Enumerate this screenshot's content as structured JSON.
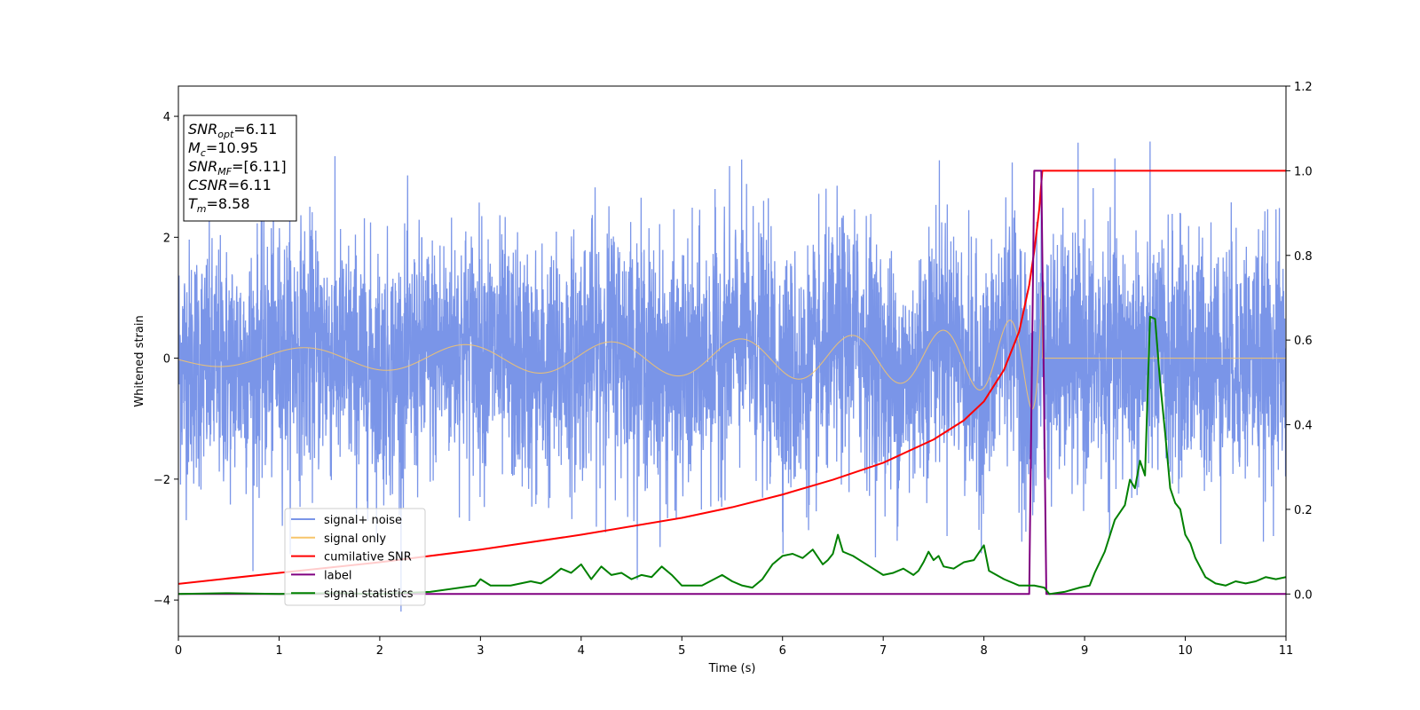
{
  "chart_data": {
    "type": "line",
    "xlabel": "Time (s)",
    "ylabel": "Whitened strain",
    "xlim": [
      0,
      11
    ],
    "ylim": [
      -4.6,
      4.5
    ],
    "y2lim": [
      -0.1,
      1.2
    ],
    "xticks": [
      "0",
      "1",
      "2",
      "3",
      "4",
      "5",
      "6",
      "7",
      "8",
      "9",
      "10",
      "11"
    ],
    "yticks": [
      "4",
      "2",
      "0",
      "−2",
      "−4"
    ],
    "y2ticks": [
      "1.2",
      "1.0",
      "0.8",
      "0.6",
      "0.4",
      "0.2",
      "0.0"
    ],
    "grid": false,
    "legend_position": "lower-left",
    "annotation": [
      {
        "base": "SNR",
        "sub": "opt",
        "value": "=6.11"
      },
      {
        "base": "M",
        "sub": "c",
        "value": "=10.95"
      },
      {
        "base": "SNR",
        "sub": "MF",
        "value": "=[6.11]"
      },
      {
        "base": "CSNR",
        "sub": "",
        "value": "=6.11"
      },
      {
        "base": "T",
        "sub": "m",
        "value": "=8.58"
      }
    ],
    "series": [
      {
        "name": "signal+ noise",
        "color": "#7a95e8",
        "axis": "left",
        "kind": "noise",
        "noise_sigma": 1.0,
        "x_range": [
          0,
          11
        ]
      },
      {
        "name": "signal only",
        "color": "#f7c56a",
        "axis": "left",
        "kind": "chirp",
        "coalescence_time": 8.58,
        "peak_amplitude": 1.25,
        "x_range": [
          0,
          11
        ]
      },
      {
        "name": "cumilative SNR",
        "color": "#ff0000",
        "axis": "right",
        "points": [
          [
            0,
            0.024
          ],
          [
            1,
            0.05
          ],
          [
            2,
            0.075
          ],
          [
            3,
            0.105
          ],
          [
            4,
            0.14
          ],
          [
            5,
            0.18
          ],
          [
            5.5,
            0.205
          ],
          [
            6,
            0.235
          ],
          [
            6.5,
            0.27
          ],
          [
            7,
            0.31
          ],
          [
            7.5,
            0.365
          ],
          [
            7.8,
            0.41
          ],
          [
            8,
            0.455
          ],
          [
            8.2,
            0.53
          ],
          [
            8.35,
            0.62
          ],
          [
            8.45,
            0.73
          ],
          [
            8.5,
            0.81
          ],
          [
            8.55,
            0.91
          ],
          [
            8.58,
            1.0
          ],
          [
            11,
            1.0
          ]
        ]
      },
      {
        "name": "label",
        "color": "#800080",
        "axis": "right",
        "points": [
          [
            0,
            0
          ],
          [
            8.45,
            0
          ],
          [
            8.5,
            1.0
          ],
          [
            8.57,
            1.0
          ],
          [
            8.62,
            0
          ],
          [
            11,
            0
          ]
        ]
      },
      {
        "name": "signal statistics",
        "color": "#008000",
        "axis": "right",
        "points": [
          [
            0,
            0.0
          ],
          [
            0.5,
            0.002
          ],
          [
            1,
            0.0
          ],
          [
            1.5,
            0.002
          ],
          [
            2,
            0.0
          ],
          [
            2.5,
            0.005
          ],
          [
            2.8,
            0.015
          ],
          [
            2.95,
            0.02
          ],
          [
            3.0,
            0.035
          ],
          [
            3.1,
            0.02
          ],
          [
            3.3,
            0.02
          ],
          [
            3.5,
            0.03
          ],
          [
            3.6,
            0.025
          ],
          [
            3.7,
            0.04
          ],
          [
            3.8,
            0.06
          ],
          [
            3.9,
            0.05
          ],
          [
            4.0,
            0.07
          ],
          [
            4.1,
            0.035
          ],
          [
            4.2,
            0.065
          ],
          [
            4.3,
            0.045
          ],
          [
            4.4,
            0.05
          ],
          [
            4.5,
            0.035
          ],
          [
            4.6,
            0.045
          ],
          [
            4.7,
            0.04
          ],
          [
            4.8,
            0.065
          ],
          [
            4.9,
            0.045
          ],
          [
            5.0,
            0.02
          ],
          [
            5.2,
            0.02
          ],
          [
            5.4,
            0.045
          ],
          [
            5.5,
            0.03
          ],
          [
            5.6,
            0.02
          ],
          [
            5.7,
            0.015
          ],
          [
            5.8,
            0.035
          ],
          [
            5.9,
            0.07
          ],
          [
            6.0,
            0.09
          ],
          [
            6.1,
            0.095
          ],
          [
            6.2,
            0.085
          ],
          [
            6.3,
            0.105
          ],
          [
            6.4,
            0.07
          ],
          [
            6.45,
            0.08
          ],
          [
            6.5,
            0.095
          ],
          [
            6.55,
            0.14
          ],
          [
            6.6,
            0.1
          ],
          [
            6.7,
            0.09
          ],
          [
            6.8,
            0.075
          ],
          [
            6.9,
            0.06
          ],
          [
            7.0,
            0.045
          ],
          [
            7.1,
            0.05
          ],
          [
            7.2,
            0.06
          ],
          [
            7.3,
            0.045
          ],
          [
            7.35,
            0.055
          ],
          [
            7.4,
            0.075
          ],
          [
            7.45,
            0.1
          ],
          [
            7.5,
            0.08
          ],
          [
            7.55,
            0.09
          ],
          [
            7.6,
            0.065
          ],
          [
            7.7,
            0.06
          ],
          [
            7.8,
            0.075
          ],
          [
            7.9,
            0.08
          ],
          [
            8.0,
            0.115
          ],
          [
            8.05,
            0.055
          ],
          [
            8.2,
            0.035
          ],
          [
            8.35,
            0.02
          ],
          [
            8.5,
            0.02
          ],
          [
            8.6,
            0.015
          ],
          [
            8.65,
            0.0
          ],
          [
            8.8,
            0.005
          ],
          [
            8.95,
            0.015
          ],
          [
            9.05,
            0.02
          ],
          [
            9.1,
            0.05
          ],
          [
            9.2,
            0.1
          ],
          [
            9.3,
            0.175
          ],
          [
            9.4,
            0.21
          ],
          [
            9.45,
            0.27
          ],
          [
            9.5,
            0.25
          ],
          [
            9.55,
            0.315
          ],
          [
            9.6,
            0.28
          ],
          [
            9.65,
            0.655
          ],
          [
            9.7,
            0.65
          ],
          [
            9.75,
            0.5
          ],
          [
            9.8,
            0.38
          ],
          [
            9.85,
            0.25
          ],
          [
            9.9,
            0.215
          ],
          [
            9.95,
            0.2
          ],
          [
            10.0,
            0.14
          ],
          [
            10.05,
            0.12
          ],
          [
            10.1,
            0.085
          ],
          [
            10.2,
            0.04
          ],
          [
            10.3,
            0.025
          ],
          [
            10.4,
            0.02
          ],
          [
            10.5,
            0.03
          ],
          [
            10.6,
            0.025
          ],
          [
            10.7,
            0.03
          ],
          [
            10.8,
            0.04
          ],
          [
            10.9,
            0.035
          ],
          [
            11.0,
            0.04
          ]
        ]
      }
    ]
  }
}
